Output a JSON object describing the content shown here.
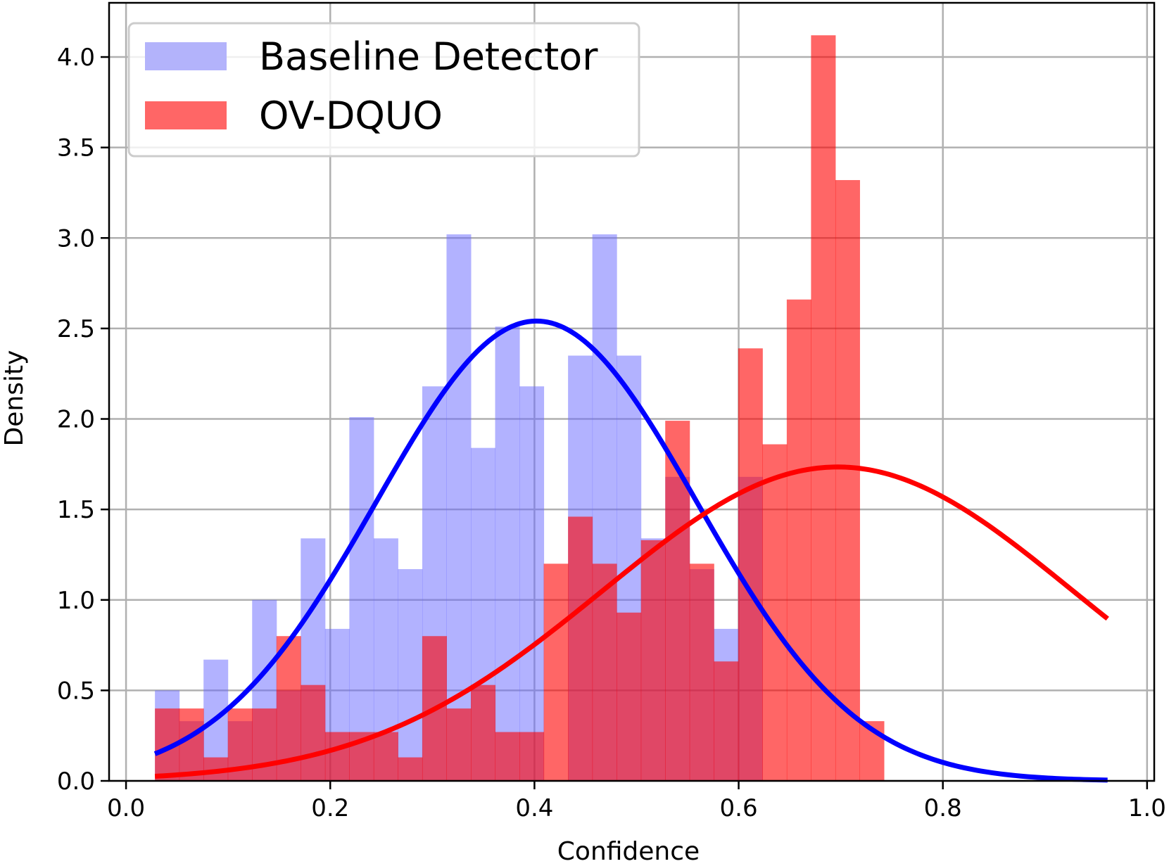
{
  "chart_data": {
    "type": "bar",
    "subtype": "histogram_with_density_curves",
    "title": "",
    "xlabel": "Confidence",
    "ylabel": "Density",
    "xlim": [
      -0.0166,
      1.007
    ],
    "ylim": [
      0.0,
      4.2995
    ],
    "xticks": [
      0.0,
      0.2,
      0.4,
      0.6,
      0.8,
      1.0
    ],
    "xtick_labels": [
      "0.0",
      "0.2",
      "0.4",
      "0.6",
      "0.8",
      "1.0"
    ],
    "yticks": [
      0.0,
      0.5,
      1.0,
      1.5,
      2.0,
      2.5,
      3.0,
      3.5,
      4.0
    ],
    "ytick_labels": [
      "0.0",
      "0.5",
      "1.0",
      "1.5",
      "2.0",
      "2.5",
      "3.0",
      "3.5",
      "4.0"
    ],
    "grid": true,
    "legend_position": "top-left",
    "colors": {
      "baseline_fill": "#b3b3fb",
      "ovdquo_fill": "#ff6666",
      "overlap_fill": "#db4466",
      "baseline_curve": "#0000ff",
      "ovdquo_curve": "#ff0000",
      "grid": "#b0b0b0"
    },
    "bin_edges": [
      0.0283,
      0.0521,
      0.0759,
      0.0997,
      0.1235,
      0.1473,
      0.1711,
      0.1949,
      0.2187,
      0.2425,
      0.2663,
      0.2901,
      0.3139,
      0.3377,
      0.3615,
      0.3853,
      0.4091,
      0.4329,
      0.4567,
      0.4805,
      0.5043,
      0.5281,
      0.5519,
      0.5757,
      0.5995,
      0.6233,
      0.6471,
      0.6709,
      0.6947,
      0.7185,
      0.7423
    ],
    "series": [
      {
        "name": "Baseline Detector",
        "color": "#b3b3fb",
        "values": [
          0.5,
          0.33,
          0.67,
          0.33,
          1.0,
          0.5,
          1.34,
          0.84,
          2.01,
          1.34,
          1.17,
          2.18,
          3.02,
          1.84,
          2.51,
          2.18,
          0.0,
          2.35,
          3.02,
          2.35,
          1.34,
          1.68,
          1.17,
          0.84,
          1.68,
          0.0,
          0.0,
          0.0,
          0.0,
          0.0
        ]
      },
      {
        "name": "OV-DQUO",
        "color": "#ff6666",
        "values": [
          0.4,
          0.4,
          0.13,
          0.4,
          0.4,
          0.8,
          0.53,
          0.27,
          0.27,
          0.27,
          0.13,
          0.8,
          0.4,
          0.53,
          0.27,
          0.27,
          1.2,
          1.46,
          1.2,
          0.93,
          1.33,
          1.99,
          1.2,
          0.66,
          2.39,
          1.86,
          2.66,
          4.12,
          3.32,
          0.33
        ]
      }
    ],
    "curves": [
      {
        "name": "Baseline Detector fit",
        "color": "#0000ff",
        "distribution": "normal",
        "mean": 0.402,
        "std": 0.157,
        "x_range": [
          0.0283,
          0.9613
        ]
      },
      {
        "name": "OV-DQUO fit",
        "color": "#ff0000",
        "distribution": "normal",
        "mean": 0.697,
        "std": 0.23,
        "x_range": [
          0.0283,
          0.9613
        ]
      }
    ]
  }
}
